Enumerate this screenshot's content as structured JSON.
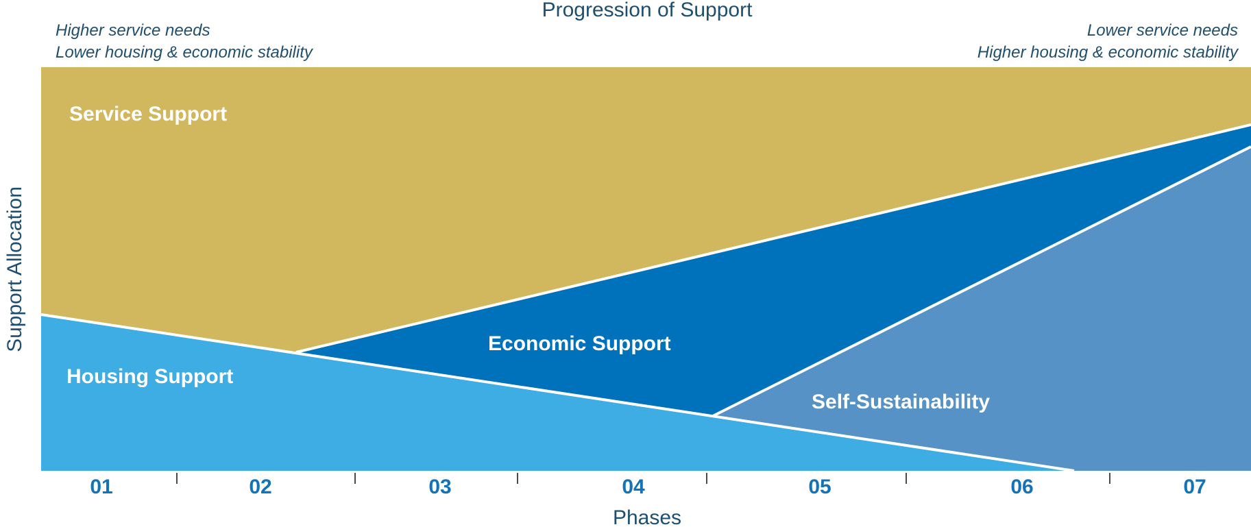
{
  "chart_data": {
    "type": "area",
    "title": "Progression of Support",
    "xlabel": "Phases",
    "ylabel": "Support Allocation",
    "categories": [
      "01",
      "02",
      "03",
      "04",
      "05",
      "06",
      "07"
    ],
    "notes": {
      "left": [
        "Higher service needs",
        "Lower housing & economic stability"
      ],
      "right": [
        "Lower service needs",
        "Higher housing & economic stability"
      ]
    },
    "series": [
      {
        "name": "Service Support",
        "color": "#d1b75e"
      },
      {
        "name": "Economic Support",
        "color": "#0072bc"
      },
      {
        "name": "Housing Support",
        "color": "#3eade3"
      },
      {
        "name": "Self-Sustainability",
        "color": "#5692c5"
      }
    ],
    "grid": false
  }
}
